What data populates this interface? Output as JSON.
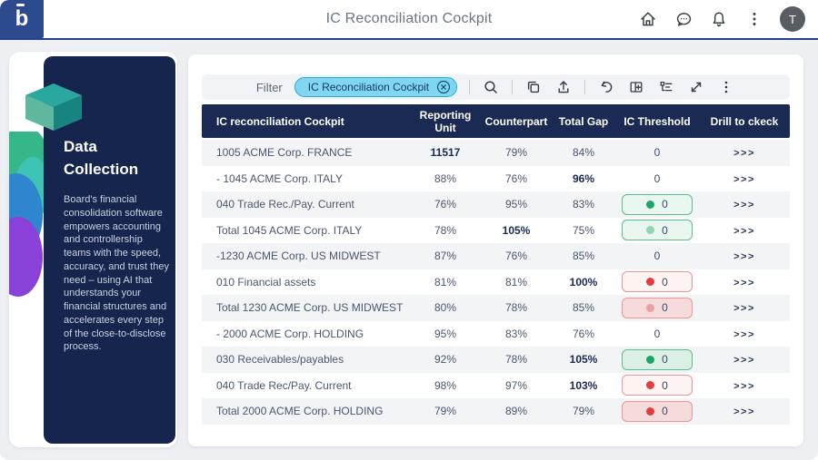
{
  "navbar": {
    "title": "IC Reconciliation Cockpit",
    "logo_letter": "b",
    "avatar_initial": "T",
    "icons": [
      "home-icon",
      "chat-icon",
      "notifications-icon",
      "more-icon"
    ]
  },
  "sidebar": {
    "heading": "Data Collection",
    "description": "Board's financial consolidation software empowers accounting and controllership teams with the speed, accuracy, and trust they need – using AI that understands your financial structures and accelerates every step of the close-to-disclose process."
  },
  "toolbar": {
    "filter_label": "Filter",
    "filter_chip": "IC Reconciliation Cockpit",
    "icons": [
      "close-icon",
      "search-icon",
      "copy-icon",
      "export-icon",
      "undo-icon",
      "add-table-icon",
      "hierarchy-icon",
      "expand-icon",
      "more-icon"
    ]
  },
  "table": {
    "columns": [
      "IC reconciliation Cockpit",
      "Reporting Unit",
      "Counterpart",
      "Total Gap",
      "IC Threshold",
      "Drill to ckeck"
    ],
    "drill_label": ">>>",
    "rows": [
      {
        "name": "1005 ACME Corp. FRANCE",
        "reporting_unit": "11517",
        "counterpart": "79%",
        "total_gap": "84%",
        "threshold": "0",
        "badge": null,
        "bold": [
          "reporting_unit"
        ]
      },
      {
        "name": "- 1045 ACME Corp. ITALY",
        "reporting_unit": "88%",
        "counterpart": "76%",
        "total_gap": "96%",
        "threshold": "0",
        "badge": null,
        "bold": [
          "total_gap"
        ]
      },
      {
        "name": "040 Trade Rec./Pay. Current",
        "reporting_unit": "76%",
        "counterpart": "95%",
        "total_gap": "83%",
        "threshold": "0",
        "badge": {
          "color": "green",
          "dot": "solid",
          "fill": "light"
        },
        "bold": []
      },
      {
        "name": "Total 1045 ACME Corp. ITALY",
        "reporting_unit": "78%",
        "counterpart": "105%",
        "total_gap": "75%",
        "threshold": "0",
        "badge": {
          "color": "green",
          "dot": "muted",
          "fill": "light"
        },
        "bold": [
          "counterpart"
        ]
      },
      {
        "name": "-1230 ACME Corp. US MIDWEST",
        "reporting_unit": "87%",
        "counterpart": "76%",
        "total_gap": "85%",
        "threshold": "0",
        "badge": null,
        "bold": []
      },
      {
        "name": "010 Financial assets",
        "reporting_unit": "81%",
        "counterpart": "81%",
        "total_gap": "100%",
        "threshold": "0",
        "badge": {
          "color": "red",
          "dot": "solid",
          "fill": "light"
        },
        "bold": [
          "total_gap"
        ]
      },
      {
        "name": "Total 1230 ACME Corp. US MIDWEST",
        "reporting_unit": "80%",
        "counterpart": "78%",
        "total_gap": "85%",
        "threshold": "0",
        "badge": {
          "color": "red",
          "dot": "muted",
          "fill": "strong"
        },
        "bold": []
      },
      {
        "name": "- 2000 ACME Corp. HOLDING",
        "reporting_unit": "95%",
        "counterpart": "83%",
        "total_gap": "76%",
        "threshold": "0",
        "badge": null,
        "bold": []
      },
      {
        "name": "030 Receivables/payables",
        "reporting_unit": "92%",
        "counterpart": "78%",
        "total_gap": "105%",
        "threshold": "0",
        "badge": {
          "color": "green",
          "dot": "solid",
          "fill": "strong"
        },
        "bold": [
          "total_gap"
        ]
      },
      {
        "name": "040 Trade Rec/Pay. Current",
        "reporting_unit": "98%",
        "counterpart": "97%",
        "total_gap": "103%",
        "threshold": "0",
        "badge": {
          "color": "red",
          "dot": "solid",
          "fill": "light"
        },
        "bold": [
          "total_gap"
        ]
      },
      {
        "name": "Total 2000 ACME Corp. HOLDING",
        "reporting_unit": "79%",
        "counterpart": "89%",
        "total_gap": "79%",
        "threshold": "0",
        "badge": {
          "color": "red",
          "dot": "solid",
          "fill": "strong"
        },
        "bold": []
      }
    ]
  },
  "colors": {
    "brand_blue": "#2e4a8f",
    "header_navy": "#1b2a52",
    "chip_bg": "#7fd6f0",
    "chip_border": "#2fa9d6",
    "green_dot": "#1da767",
    "red_dot": "#e73a42",
    "row_alt": "#f3f4f6"
  }
}
